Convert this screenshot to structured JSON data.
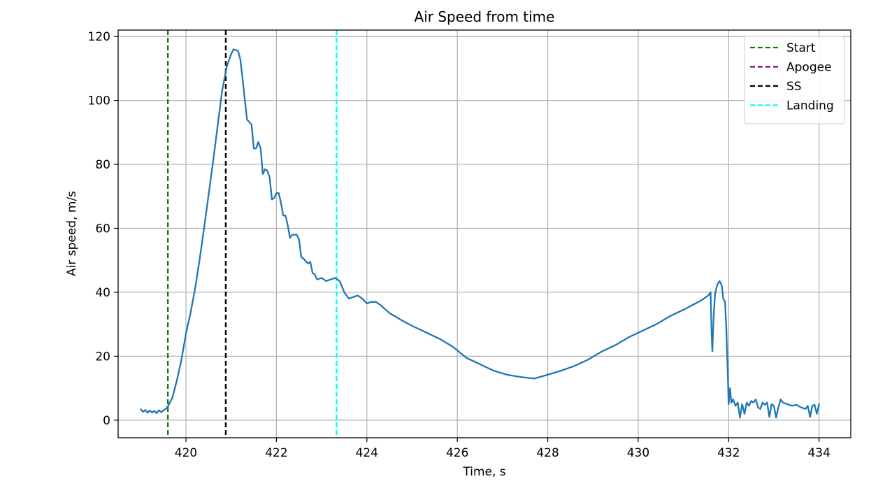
{
  "chart_data": {
    "type": "line",
    "title": "Air Speed from time",
    "xlabel": "Time, s",
    "ylabel": "Air speed, m/s",
    "xlim": [
      418.5,
      434.7
    ],
    "ylim": [
      -5.5,
      122
    ],
    "xticks": [
      420,
      422,
      424,
      426,
      428,
      430,
      432,
      434
    ],
    "yticks": [
      0,
      20,
      40,
      60,
      80,
      100,
      120
    ],
    "grid": true,
    "legend_position": "top-right",
    "series": [
      {
        "name": "",
        "color": "#1f77b4",
        "points": [
          [
            419.0,
            3.4
          ],
          [
            419.05,
            2.6
          ],
          [
            419.1,
            3.2
          ],
          [
            419.15,
            2.3
          ],
          [
            419.2,
            3.0
          ],
          [
            419.25,
            2.4
          ],
          [
            419.3,
            2.9
          ],
          [
            419.35,
            2.2
          ],
          [
            419.4,
            3.1
          ],
          [
            419.45,
            2.5
          ],
          [
            419.5,
            3.0
          ],
          [
            419.55,
            3.5
          ],
          [
            419.6,
            4.3
          ],
          [
            419.7,
            7.0
          ],
          [
            419.8,
            12.5
          ],
          [
            419.9,
            19.0
          ],
          [
            420.0,
            27.0
          ],
          [
            420.1,
            33.5
          ],
          [
            420.2,
            41.0
          ],
          [
            420.3,
            50.0
          ],
          [
            420.4,
            60.0
          ],
          [
            420.5,
            70.5
          ],
          [
            420.6,
            81.0
          ],
          [
            420.7,
            92.0
          ],
          [
            420.8,
            103.0
          ],
          [
            420.9,
            110.5
          ],
          [
            421.0,
            114.5
          ],
          [
            421.05,
            116.0
          ],
          [
            421.15,
            115.5
          ],
          [
            421.2,
            113.0
          ],
          [
            421.25,
            107.0
          ],
          [
            421.3,
            100.5
          ],
          [
            421.35,
            94.0
          ],
          [
            421.45,
            92.5
          ],
          [
            421.5,
            85.0
          ],
          [
            421.55,
            85.0
          ],
          [
            421.6,
            87.0
          ],
          [
            421.65,
            85.0
          ],
          [
            421.7,
            77.0
          ],
          [
            421.75,
            78.5
          ],
          [
            421.8,
            78.0
          ],
          [
            421.85,
            76.0
          ],
          [
            421.9,
            69.0
          ],
          [
            421.95,
            69.5
          ],
          [
            422.0,
            71.0
          ],
          [
            422.05,
            71.0
          ],
          [
            422.1,
            68.0
          ],
          [
            422.15,
            64.0
          ],
          [
            422.2,
            64.0
          ],
          [
            422.25,
            61.0
          ],
          [
            422.3,
            57.0
          ],
          [
            422.35,
            58.0
          ],
          [
            422.45,
            58.0
          ],
          [
            422.5,
            56.5
          ],
          [
            422.55,
            51.0
          ],
          [
            422.6,
            50.5
          ],
          [
            422.7,
            49.0
          ],
          [
            422.75,
            49.5
          ],
          [
            422.8,
            46.0
          ],
          [
            422.85,
            45.5
          ],
          [
            422.9,
            44.0
          ],
          [
            423.0,
            44.5
          ],
          [
            423.1,
            43.5
          ],
          [
            423.2,
            44.0
          ],
          [
            423.3,
            44.5
          ],
          [
            423.4,
            43.5
          ],
          [
            423.5,
            40.0
          ],
          [
            423.6,
            38.0
          ],
          [
            423.7,
            38.5
          ],
          [
            423.8,
            39.0
          ],
          [
            423.9,
            38.0
          ],
          [
            424.0,
            36.5
          ],
          [
            424.1,
            37.0
          ],
          [
            424.2,
            37.0
          ],
          [
            424.3,
            36.0
          ],
          [
            424.5,
            33.5
          ],
          [
            424.8,
            31.0
          ],
          [
            425.0,
            29.5
          ],
          [
            425.3,
            27.5
          ],
          [
            425.6,
            25.5
          ],
          [
            425.9,
            23.0
          ],
          [
            426.2,
            19.5
          ],
          [
            426.5,
            17.5
          ],
          [
            426.8,
            15.5
          ],
          [
            427.1,
            14.2
          ],
          [
            427.4,
            13.5
          ],
          [
            427.7,
            13.0
          ],
          [
            428.0,
            14.2
          ],
          [
            428.3,
            15.5
          ],
          [
            428.6,
            17.0
          ],
          [
            428.9,
            19.0
          ],
          [
            429.2,
            21.5
          ],
          [
            429.5,
            23.5
          ],
          [
            429.8,
            26.0
          ],
          [
            430.1,
            28.0
          ],
          [
            430.4,
            30.0
          ],
          [
            430.7,
            32.5
          ],
          [
            431.0,
            34.5
          ],
          [
            431.2,
            36.0
          ],
          [
            431.4,
            37.5
          ],
          [
            431.55,
            39.0
          ],
          [
            431.6,
            40.0
          ],
          [
            431.62,
            28.0
          ],
          [
            431.64,
            21.5
          ],
          [
            431.67,
            33.0
          ],
          [
            431.7,
            39.5
          ],
          [
            431.75,
            42.5
          ],
          [
            431.8,
            43.5
          ],
          [
            431.85,
            42.0
          ],
          [
            431.88,
            38.0
          ],
          [
            431.92,
            37.0
          ],
          [
            431.95,
            28.0
          ],
          [
            431.98,
            15.0
          ],
          [
            432.0,
            5.0
          ],
          [
            432.03,
            10.0
          ],
          [
            432.06,
            5.5
          ],
          [
            432.1,
            6.5
          ],
          [
            432.15,
            4.5
          ],
          [
            432.2,
            5.5
          ],
          [
            432.25,
            0.8
          ],
          [
            432.3,
            5.0
          ],
          [
            432.35,
            2.0
          ],
          [
            432.4,
            5.5
          ],
          [
            432.45,
            4.5
          ],
          [
            432.5,
            6.0
          ],
          [
            432.55,
            5.5
          ],
          [
            432.6,
            6.5
          ],
          [
            432.65,
            4.0
          ],
          [
            432.7,
            3.5
          ],
          [
            432.75,
            5.5
          ],
          [
            432.8,
            4.8
          ],
          [
            432.85,
            5.5
          ],
          [
            432.9,
            1.0
          ],
          [
            432.95,
            5.0
          ],
          [
            433.0,
            4.5
          ],
          [
            433.05,
            0.8
          ],
          [
            433.1,
            4.0
          ],
          [
            433.15,
            6.5
          ],
          [
            433.2,
            5.5
          ],
          [
            433.3,
            5.0
          ],
          [
            433.4,
            4.5
          ],
          [
            433.5,
            4.8
          ],
          [
            433.6,
            4.0
          ],
          [
            433.7,
            3.5
          ],
          [
            433.75,
            4.5
          ],
          [
            433.8,
            1.0
          ],
          [
            433.85,
            4.5
          ],
          [
            433.9,
            4.8
          ],
          [
            433.95,
            2.0
          ],
          [
            434.0,
            5.0
          ]
        ]
      }
    ],
    "vlines": [
      {
        "name": "Start",
        "x": 419.6,
        "color": "#008000"
      },
      {
        "name": "Apogee",
        "x": 420.88,
        "color": "#800080"
      },
      {
        "name": "SS",
        "x": 420.88,
        "color": "#000000"
      },
      {
        "name": "Landing",
        "x": 423.33,
        "color": "#00ffff"
      }
    ]
  }
}
